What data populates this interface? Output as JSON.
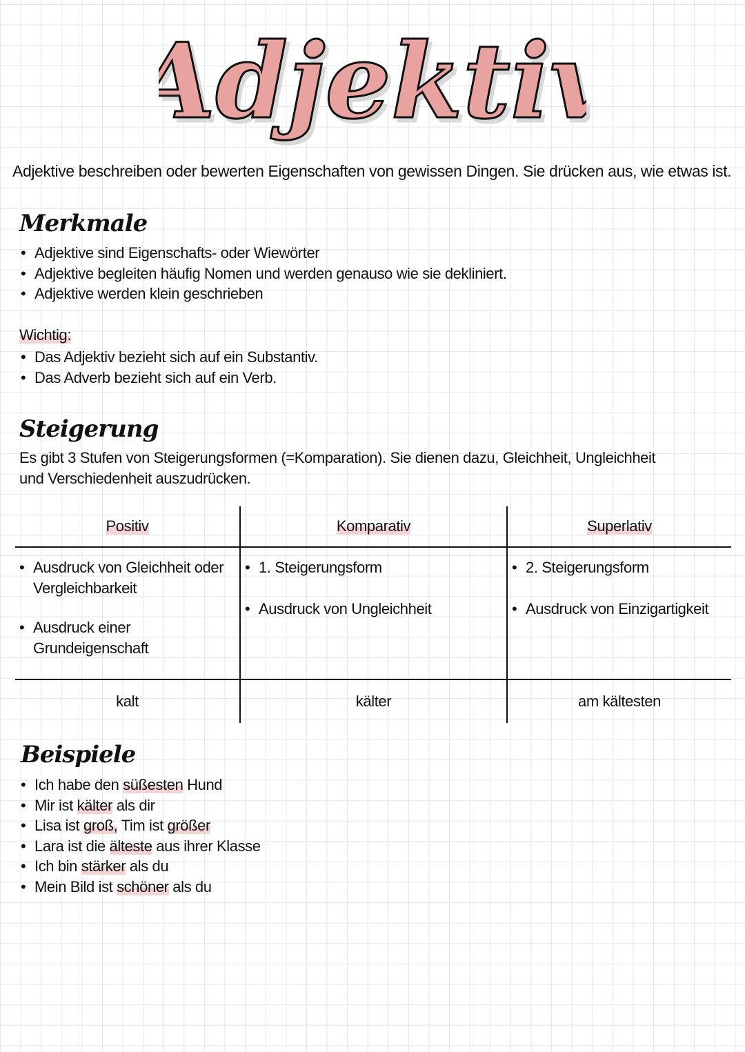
{
  "title": "Adjektiv",
  "intro": "Adjektive beschreiben oder bewerten Eigenschaften von gewissen Dingen. Sie drücken aus, wie etwas ist.",
  "merkmale": {
    "heading": "Merkmale",
    "items": [
      "Adjektive sind Eigenschafts- oder Wiewörter",
      "Adjektive begleiten häufig Nomen und werden genauso wie sie dekliniert.",
      "Adjektive werden klein geschrieben"
    ]
  },
  "wichtig": {
    "label": "Wichtig:",
    "items": [
      "Das Adjektiv bezieht sich auf ein Substantiv.",
      "Das Adverb bezieht sich auf ein Verb."
    ]
  },
  "steigerung": {
    "heading": "Steigerung",
    "line1": "Es gibt 3 Stufen von Steigerungsformen (=Komparation). Sie dienen dazu, Gleichheit, Ungleichheit",
    "line2": "und Verschiedenheit auszudrücken."
  },
  "table": {
    "headers": [
      "Positiv",
      "Komparativ",
      "Superlativ"
    ],
    "descriptions": [
      [
        "Ausdruck von Gleichheit oder Vergleichbarkeit",
        "Ausdruck einer Grundeigenschaft"
      ],
      [
        "1. Steigerungsform",
        "Ausdruck von Ungleichheit"
      ],
      [
        "2. Steigerungsform",
        "Ausdruck von Einzigartigkeit"
      ]
    ],
    "examples": [
      "kalt",
      "kälter",
      "am kältesten"
    ]
  },
  "beispiele": {
    "heading": "Beispiele",
    "items": [
      {
        "a": "Ich habe den ",
        "h1": "süßesten",
        "b": " Hund",
        "h2": "",
        "c": ""
      },
      {
        "a": "Mir ist ",
        "h1": "kälter",
        "b": " als dir",
        "h2": "",
        "c": ""
      },
      {
        "a": "Lisa ist ",
        "h1": "groß,",
        "b": " Tim ist ",
        "h2": "größer",
        "c": ""
      },
      {
        "a": "Lara ist die ",
        "h1": "älteste",
        "b": " aus ihrer Klasse",
        "h2": "",
        "c": ""
      },
      {
        "a": "Ich bin ",
        "h1": "stärker",
        "b": " als du",
        "h2": "",
        "c": ""
      },
      {
        "a": "Mein Bild ist ",
        "h1": "schöner",
        "b": " als du",
        "h2": "",
        "c": ""
      }
    ]
  },
  "colors": {
    "title_pink": "#e8a3a0",
    "highlight": "#f3d3d3",
    "ink": "#111111"
  }
}
